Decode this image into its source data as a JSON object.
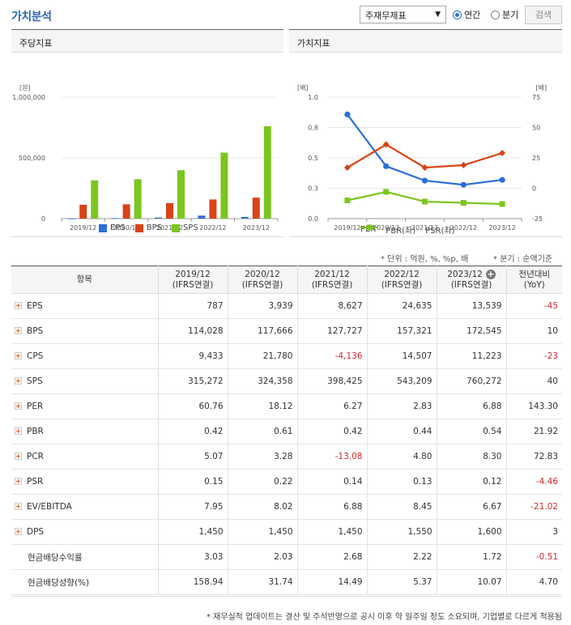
{
  "header": {
    "title": "가치분석",
    "select_value": "주재무제표",
    "radio_annual": "연간",
    "radio_quarter": "분기",
    "search_label": "검색"
  },
  "left_panel": {
    "title": "주당지표"
  },
  "right_panel": {
    "title": "가치지표"
  },
  "chart_data": [
    {
      "type": "bar",
      "title": "주당지표",
      "ylabel": "[원]",
      "categories": [
        "2019/12",
        "2020/12",
        "2021/12",
        "2022/12",
        "2023/12"
      ],
      "yticks": [
        "1,000,000",
        "500,000",
        "0"
      ],
      "ylim": [
        0,
        1000000
      ],
      "series": [
        {
          "name": "EPS",
          "color": "#2b6fd6",
          "values": [
            787,
            3939,
            8627,
            24635,
            13539
          ]
        },
        {
          "name": "BPS",
          "color": "#d84315",
          "values": [
            114028,
            117666,
            127727,
            157321,
            172545
          ]
        },
        {
          "name": "SPS",
          "color": "#7cc520",
          "values": [
            315272,
            324358,
            398425,
            543209,
            760272
          ]
        }
      ]
    },
    {
      "type": "line",
      "title": "가치지표",
      "ylabel_left": "[배]",
      "ylabel_right": "[배]",
      "categories": [
        "2019/12",
        "2020/12",
        "2021/12",
        "2022/12",
        "2023/12"
      ],
      "yticks_left": [
        "1.0",
        "0.8",
        "0.5",
        "0.3",
        "0.0"
      ],
      "yticks_right": [
        "75",
        "50",
        "25",
        "0",
        "-25"
      ],
      "ylim_left": [
        0,
        1.0
      ],
      "ylim_right": [
        -25,
        75
      ],
      "series": [
        {
          "name": "PER",
          "axis": "right",
          "color": "#2b6fd6",
          "marker": "circle",
          "values": [
            60.76,
            18.12,
            6.27,
            2.83,
            6.88
          ]
        },
        {
          "name": "PBR(좌)",
          "axis": "left",
          "color": "#d84315",
          "marker": "diamond",
          "values": [
            0.42,
            0.61,
            0.42,
            0.44,
            0.54
          ]
        },
        {
          "name": "PSR(좌)",
          "axis": "left",
          "color": "#7cc520",
          "marker": "square",
          "values": [
            0.15,
            0.22,
            0.14,
            0.13,
            0.12
          ]
        }
      ]
    }
  ],
  "table": {
    "note_unit": "* 단위 : 억원, %, %p, 배",
    "note_quarter": "* 분기 : 순액기준",
    "headers": [
      {
        "l1": "항목",
        "l2": ""
      },
      {
        "l1": "2019/12",
        "l2": "(IFRS연결)"
      },
      {
        "l1": "2020/12",
        "l2": "(IFRS연결)"
      },
      {
        "l1": "2021/12",
        "l2": "(IFRS연결)"
      },
      {
        "l1": "2022/12",
        "l2": "(IFRS연결)"
      },
      {
        "l1": "2023/12",
        "l2": "(IFRS연결)"
      },
      {
        "l1": "전년대비",
        "l2": "(YoY)"
      }
    ],
    "rows": [
      {
        "label": "EPS",
        "expand": true,
        "cells": [
          "787",
          "3,939",
          "8,627",
          "24,635",
          "13,539",
          "-45"
        ]
      },
      {
        "label": "BPS",
        "expand": true,
        "cells": [
          "114,028",
          "117,666",
          "127,727",
          "157,321",
          "172,545",
          "10"
        ]
      },
      {
        "label": "CPS",
        "expand": true,
        "cells": [
          "9,433",
          "21,780",
          "-4,136",
          "14,507",
          "11,223",
          "-23"
        ]
      },
      {
        "label": "SPS",
        "expand": true,
        "cells": [
          "315,272",
          "324,358",
          "398,425",
          "543,209",
          "760,272",
          "40"
        ]
      },
      {
        "label": "PER",
        "expand": true,
        "cells": [
          "60.76",
          "18.12",
          "6.27",
          "2.83",
          "6.88",
          "143.30"
        ]
      },
      {
        "label": "PBR",
        "expand": true,
        "cells": [
          "0.42",
          "0.61",
          "0.42",
          "0.44",
          "0.54",
          "21.92"
        ]
      },
      {
        "label": "PCR",
        "expand": true,
        "cells": [
          "5.07",
          "3.28",
          "-13.08",
          "4.80",
          "8.30",
          "72.83"
        ]
      },
      {
        "label": "PSR",
        "expand": true,
        "cells": [
          "0.15",
          "0.22",
          "0.14",
          "0.13",
          "0.12",
          "-4.46"
        ]
      },
      {
        "label": "EV/EBITDA",
        "expand": true,
        "cells": [
          "7.95",
          "8.02",
          "6.88",
          "8.45",
          "6.67",
          "-21.02"
        ]
      },
      {
        "label": "DPS",
        "expand": true,
        "cells": [
          "1,450",
          "1,450",
          "1,450",
          "1,550",
          "1,600",
          "3"
        ]
      },
      {
        "label": "현금배당수익률",
        "expand": false,
        "cells": [
          "3.03",
          "2.03",
          "2.68",
          "2.22",
          "1.72",
          "-0.51"
        ]
      },
      {
        "label": "현금배당성향(%)",
        "expand": false,
        "cells": [
          "158.94",
          "31.74",
          "14.49",
          "5.37",
          "10.07",
          "4.70"
        ]
      }
    ]
  },
  "footnote": "* 재무실적 업데이트는 결산 및 주석반영으로 공시 이후 약 일주일 정도 소요되며, 기업별로 다르게 적용됨"
}
